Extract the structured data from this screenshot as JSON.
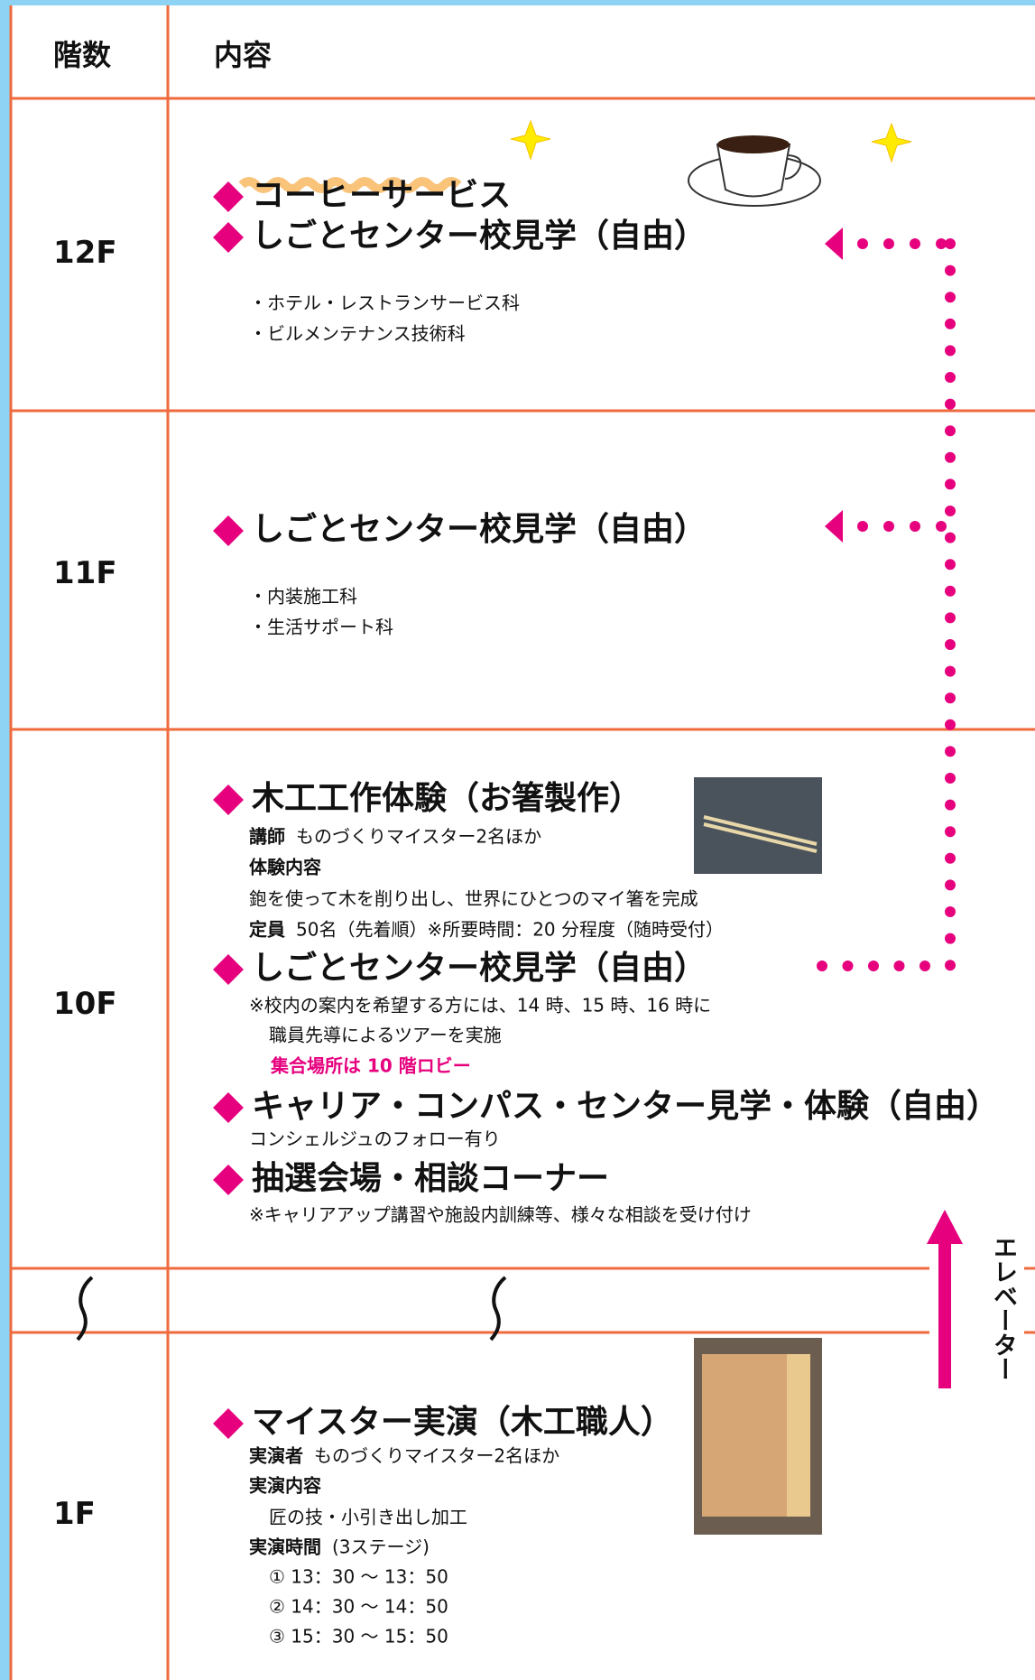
{
  "header": {
    "floor_label": "階数",
    "content_label": "内容"
  },
  "floors": [
    {
      "floor": "12F",
      "items": [
        {
          "title": "コーヒーサービス"
        },
        {
          "title": "しごとセンター校見学（自由）",
          "lines": [
            "・ホテル・レストランサービス科",
            "・ビルメンテナンス技術科"
          ]
        }
      ]
    },
    {
      "floor": "11F",
      "items": [
        {
          "title": "しごとセンター校見学（自由）",
          "lines": [
            "・内装施工科",
            "・生活サポート科"
          ]
        }
      ]
    },
    {
      "floor": "10F",
      "items": [
        {
          "title": "木工工作体験（お箸製作）",
          "rows": [
            {
              "label": "講師",
              "text": "ものづくりマイスター2名ほか"
            },
            {
              "label": "体験内容"
            },
            {
              "text": "鉋を使って木を削り出し、世界にひとつのマイ箸を完成"
            },
            {
              "label": "定員",
              "text": "50名（先着順）※所要時間：20 分程度（随時受付）"
            }
          ]
        },
        {
          "title": "しごとセンター校見学（自由）",
          "lines": [
            "※校内の案内を希望する方には、14 時、15 時、16 時に",
            "職員先導によるツアーを実施"
          ],
          "highlight": "集合場所は 10 階ロビー"
        },
        {
          "title": "キャリア・コンパス・センター見学・体験（自由）",
          "lines": [
            "コンシェルジュのフォロー有り"
          ]
        },
        {
          "title": "抽選会場・相談コーナー",
          "lines": [
            "※キャリアアップ講習や施設内訓練等、様々な相談を受け付け"
          ]
        }
      ]
    },
    {
      "floor": "1F",
      "items": [
        {
          "title": "マイスター実演（木工職人）",
          "rows": [
            {
              "label": "実演者",
              "text": "ものづくりマイスター2名ほか"
            },
            {
              "label": "実演内容"
            },
            {
              "text": "匠の技・小引き出し加工"
            },
            {
              "label": "実演時間",
              "text": "(3ステージ)"
            }
          ],
          "lines": [
            "① 13：30 〜 13：50",
            "② 14：30 〜 14：50",
            "③ 15：30 〜 15：50"
          ]
        }
      ]
    }
  ],
  "elevator": "エレベーター"
}
